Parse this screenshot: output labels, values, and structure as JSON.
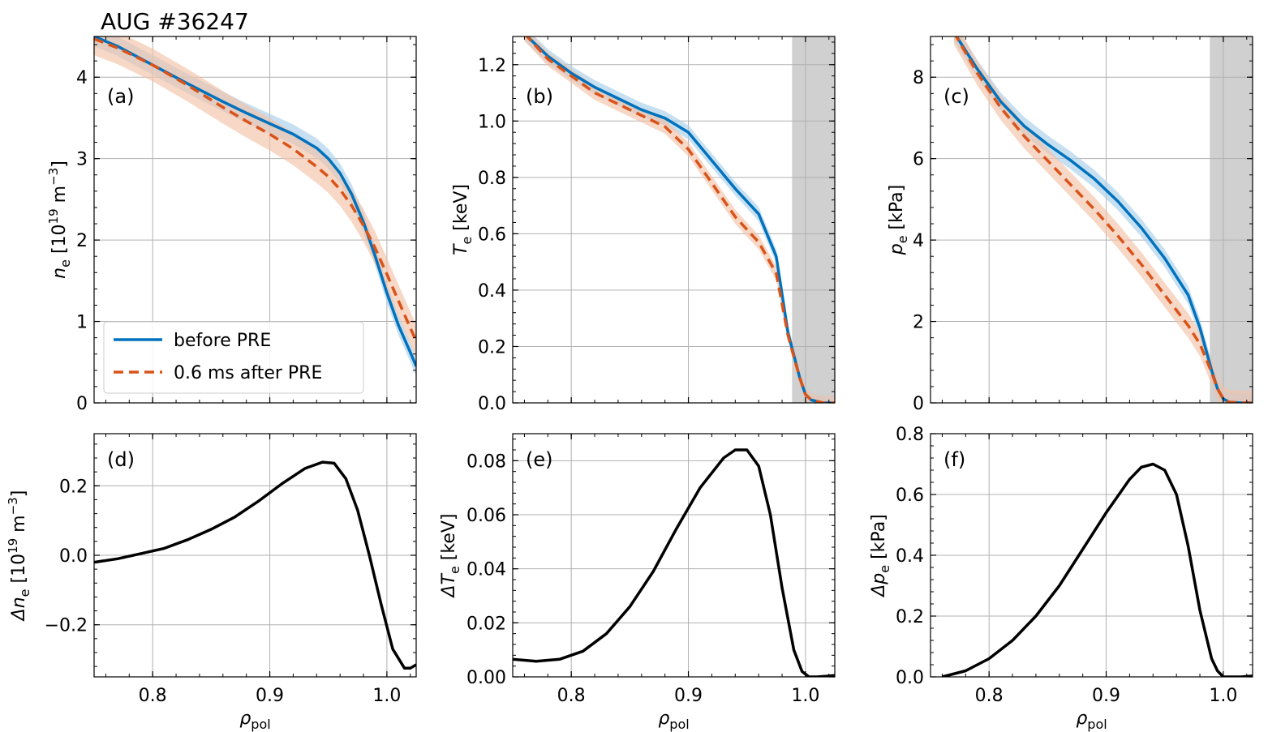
{
  "figure_title": "AUG #36247",
  "colors": {
    "before": "#0072bd",
    "before_band": "#a9cfea",
    "after": "#d95319",
    "after_band": "#f2c2a8",
    "diff": "#000000",
    "shade": "#d0d0d0",
    "grid": "#b0b0b0"
  },
  "legend": {
    "before_label": "before PRE",
    "after_label": "0.6 ms after PRE"
  },
  "chart_data": [
    {
      "id": "a",
      "panel_label": "(a)",
      "type": "line",
      "ylabel_main": "n",
      "ylabel_sub": "e",
      "ylabel_unit": " [10",
      "ylabel_sup": "19",
      "ylabel_tail": " m",
      "ylabel_sup2": "−3",
      "ylabel_end": "]",
      "xlabel_main": "",
      "xlabel_sub": "",
      "xlim": [
        0.75,
        1.025
      ],
      "ylim": [
        0,
        4.5
      ],
      "xticks": [
        0.8,
        0.9,
        1.0
      ],
      "xticklabels": [],
      "yticks": [
        0,
        1,
        2,
        3,
        4
      ],
      "yticklabels": [
        "0",
        "1",
        "2",
        "3",
        "4"
      ],
      "shaded_region": null,
      "series": [
        {
          "name": "before PRE",
          "x": [
            0.75,
            0.77,
            0.8,
            0.83,
            0.86,
            0.88,
            0.9,
            0.92,
            0.94,
            0.95,
            0.96,
            0.97,
            0.98,
            0.99,
            1.0,
            1.01,
            1.02,
            1.025
          ],
          "y": [
            4.5,
            4.38,
            4.15,
            3.92,
            3.7,
            3.56,
            3.43,
            3.3,
            3.13,
            3.0,
            2.82,
            2.56,
            2.22,
            1.8,
            1.35,
            0.95,
            0.62,
            0.45
          ],
          "band": 0.12
        },
        {
          "name": "0.6 ms after PRE",
          "x": [
            0.75,
            0.77,
            0.8,
            0.83,
            0.86,
            0.88,
            0.9,
            0.92,
            0.94,
            0.95,
            0.96,
            0.97,
            0.98,
            0.99,
            1.0,
            1.01,
            1.02,
            1.025
          ],
          "y": [
            4.47,
            4.36,
            4.15,
            3.9,
            3.63,
            3.46,
            3.3,
            3.12,
            2.9,
            2.78,
            2.62,
            2.42,
            2.18,
            1.9,
            1.58,
            1.25,
            0.92,
            0.76
          ],
          "band": 0.2
        }
      ]
    },
    {
      "id": "b",
      "panel_label": "(b)",
      "type": "line",
      "ylabel_main": "T",
      "ylabel_sub": "e",
      "ylabel_unit": " [keV]",
      "ylabel_sup": "",
      "ylabel_tail": "",
      "ylabel_sup2": "",
      "ylabel_end": "",
      "xlabel_main": "",
      "xlabel_sub": "",
      "xlim": [
        0.75,
        1.025
      ],
      "ylim": [
        0,
        1.3
      ],
      "xticks": [
        0.8,
        0.9,
        1.0
      ],
      "xticklabels": [],
      "yticks": [
        0,
        0.2,
        0.4,
        0.6,
        0.8,
        1.0,
        1.2
      ],
      "yticklabels": [
        "0.0",
        "0.2",
        "0.4",
        "0.6",
        "0.8",
        "1.0",
        "1.2"
      ],
      "shaded_region": [
        0.9885,
        1.025
      ],
      "series": [
        {
          "name": "before PRE",
          "x": [
            0.76,
            0.78,
            0.8,
            0.82,
            0.84,
            0.86,
            0.88,
            0.9,
            0.92,
            0.94,
            0.96,
            0.975,
            0.985,
            0.995,
            1.0,
            1.005,
            1.015,
            1.025
          ],
          "y": [
            1.31,
            1.23,
            1.17,
            1.12,
            1.08,
            1.04,
            1.01,
            0.96,
            0.86,
            0.76,
            0.67,
            0.52,
            0.25,
            0.09,
            0.03,
            0.01,
            0.0,
            0.0
          ],
          "band": 0.025
        },
        {
          "name": "0.6 ms after PRE",
          "x": [
            0.76,
            0.78,
            0.8,
            0.82,
            0.84,
            0.86,
            0.88,
            0.9,
            0.92,
            0.94,
            0.96,
            0.975,
            0.985,
            0.995,
            1.0,
            1.005,
            1.015,
            1.025
          ],
          "y": [
            1.31,
            1.22,
            1.16,
            1.1,
            1.06,
            1.02,
            0.98,
            0.9,
            0.78,
            0.66,
            0.57,
            0.46,
            0.24,
            0.09,
            0.03,
            0.01,
            0.0,
            0.0
          ],
          "band": 0.025
        }
      ]
    },
    {
      "id": "c",
      "panel_label": "(c)",
      "type": "line",
      "ylabel_main": "p",
      "ylabel_sub": "e",
      "ylabel_unit": " [kPa]",
      "ylabel_sup": "",
      "ylabel_tail": "",
      "ylabel_sup2": "",
      "ylabel_end": "",
      "xlabel_main": "",
      "xlabel_sub": "",
      "xlim": [
        0.75,
        1.025
      ],
      "ylim": [
        0,
        9
      ],
      "xticks": [
        0.8,
        0.9,
        1.0
      ],
      "xticklabels": [],
      "yticks": [
        0,
        2,
        4,
        6,
        8
      ],
      "yticklabels": [
        "0",
        "2",
        "4",
        "6",
        "8"
      ],
      "shaded_region": [
        0.9885,
        1.025
      ],
      "series": [
        {
          "name": "before PRE",
          "x": [
            0.77,
            0.79,
            0.81,
            0.83,
            0.85,
            0.87,
            0.89,
            0.91,
            0.93,
            0.95,
            0.97,
            0.98,
            0.99,
            0.995,
            1.0,
            1.005,
            1.015,
            1.025
          ],
          "y": [
            9.1,
            8.2,
            7.4,
            6.8,
            6.35,
            5.95,
            5.5,
            4.95,
            4.3,
            3.55,
            2.65,
            1.85,
            0.8,
            0.35,
            0.1,
            0.02,
            0.0,
            0.0
          ],
          "band": 0.22
        },
        {
          "name": "0.6 ms after PRE",
          "x": [
            0.77,
            0.79,
            0.81,
            0.83,
            0.85,
            0.87,
            0.89,
            0.91,
            0.93,
            0.95,
            0.97,
            0.98,
            0.99,
            0.995,
            1.0,
            1.005,
            1.015,
            1.025
          ],
          "y": [
            9.1,
            8.1,
            7.25,
            6.55,
            5.95,
            5.35,
            4.75,
            4.1,
            3.4,
            2.65,
            1.9,
            1.45,
            0.75,
            0.35,
            0.1,
            0.02,
            0.0,
            0.0
          ],
          "band": 0.3
        }
      ]
    },
    {
      "id": "d",
      "panel_label": "(d)",
      "type": "line",
      "ylabel_main": "Δn",
      "ylabel_sub": "e",
      "ylabel_unit": " [10",
      "ylabel_sup": "19",
      "ylabel_tail": " m",
      "ylabel_sup2": "−3",
      "ylabel_end": "]",
      "xlabel_main": "ρ",
      "xlabel_sub": "pol",
      "xlim": [
        0.75,
        1.025
      ],
      "ylim": [
        -0.35,
        0.35
      ],
      "xticks": [
        0.8,
        0.9,
        1.0
      ],
      "xticklabels": [
        "0.8",
        "0.9",
        "1.0"
      ],
      "yticks": [
        -0.2,
        0.0,
        0.2
      ],
      "yticklabels": [
        "−0.2",
        "0.0",
        "0.2"
      ],
      "shaded_region": null,
      "series": [
        {
          "name": "difference",
          "x": [
            0.75,
            0.77,
            0.79,
            0.81,
            0.83,
            0.85,
            0.87,
            0.89,
            0.91,
            0.93,
            0.945,
            0.955,
            0.965,
            0.975,
            0.985,
            0.995,
            1.005,
            1.015,
            1.02,
            1.025
          ],
          "y": [
            -0.02,
            -0.01,
            0.005,
            0.02,
            0.045,
            0.075,
            0.11,
            0.155,
            0.205,
            0.25,
            0.268,
            0.265,
            0.22,
            0.13,
            0.0,
            -0.14,
            -0.27,
            -0.325,
            -0.325,
            -0.315
          ],
          "band": 0
        }
      ]
    },
    {
      "id": "e",
      "panel_label": "(e)",
      "type": "line",
      "ylabel_main": "ΔT",
      "ylabel_sub": "e",
      "ylabel_unit": " [keV]",
      "ylabel_sup": "",
      "ylabel_tail": "",
      "ylabel_sup2": "",
      "ylabel_end": "",
      "xlabel_main": "ρ",
      "xlabel_sub": "pol",
      "xlim": [
        0.75,
        1.025
      ],
      "ylim": [
        0,
        0.09
      ],
      "xticks": [
        0.8,
        0.9,
        1.0
      ],
      "xticklabels": [
        "0.8",
        "0.9",
        "1.0"
      ],
      "yticks": [
        0,
        0.02,
        0.04,
        0.06,
        0.08
      ],
      "yticklabels": [
        "0.00",
        "0.02",
        "0.04",
        "0.06",
        "0.08"
      ],
      "shaded_region": null,
      "series": [
        {
          "name": "difference",
          "x": [
            0.75,
            0.77,
            0.79,
            0.81,
            0.83,
            0.85,
            0.87,
            0.89,
            0.91,
            0.93,
            0.94,
            0.95,
            0.96,
            0.97,
            0.98,
            0.99,
            0.997,
            1.003,
            1.01,
            1.025
          ],
          "y": [
            0.0065,
            0.0058,
            0.0065,
            0.0095,
            0.016,
            0.026,
            0.039,
            0.055,
            0.07,
            0.081,
            0.084,
            0.084,
            0.078,
            0.06,
            0.033,
            0.01,
            0.002,
            0.0,
            0.0,
            0.0005
          ],
          "band": 0
        }
      ]
    },
    {
      "id": "f",
      "panel_label": "(f)",
      "type": "line",
      "ylabel_main": "Δp",
      "ylabel_sub": "e",
      "ylabel_unit": " [kPa]",
      "ylabel_sup": "",
      "ylabel_tail": "",
      "ylabel_sup2": "",
      "ylabel_end": "",
      "xlabel_main": "ρ",
      "xlabel_sub": "pol",
      "xlim": [
        0.75,
        1.025
      ],
      "ylim": [
        0,
        0.8
      ],
      "xticks": [
        0.8,
        0.9,
        1.0
      ],
      "xticklabels": [
        "0.8",
        "0.9",
        "1.0"
      ],
      "yticks": [
        0,
        0.2,
        0.4,
        0.6,
        0.8
      ],
      "yticklabels": [
        "0.0",
        "0.2",
        "0.4",
        "0.6",
        "0.8"
      ],
      "shaded_region": null,
      "series": [
        {
          "name": "difference",
          "x": [
            0.76,
            0.78,
            0.8,
            0.82,
            0.84,
            0.86,
            0.88,
            0.9,
            0.92,
            0.93,
            0.94,
            0.95,
            0.96,
            0.97,
            0.98,
            0.99,
            0.995,
            1.0,
            1.015,
            1.025
          ],
          "y": [
            0.0,
            0.02,
            0.06,
            0.12,
            0.2,
            0.3,
            0.42,
            0.54,
            0.65,
            0.69,
            0.7,
            0.68,
            0.6,
            0.43,
            0.22,
            0.06,
            0.02,
            0.0,
            0.0,
            0.003
          ],
          "band": 0
        }
      ]
    }
  ]
}
